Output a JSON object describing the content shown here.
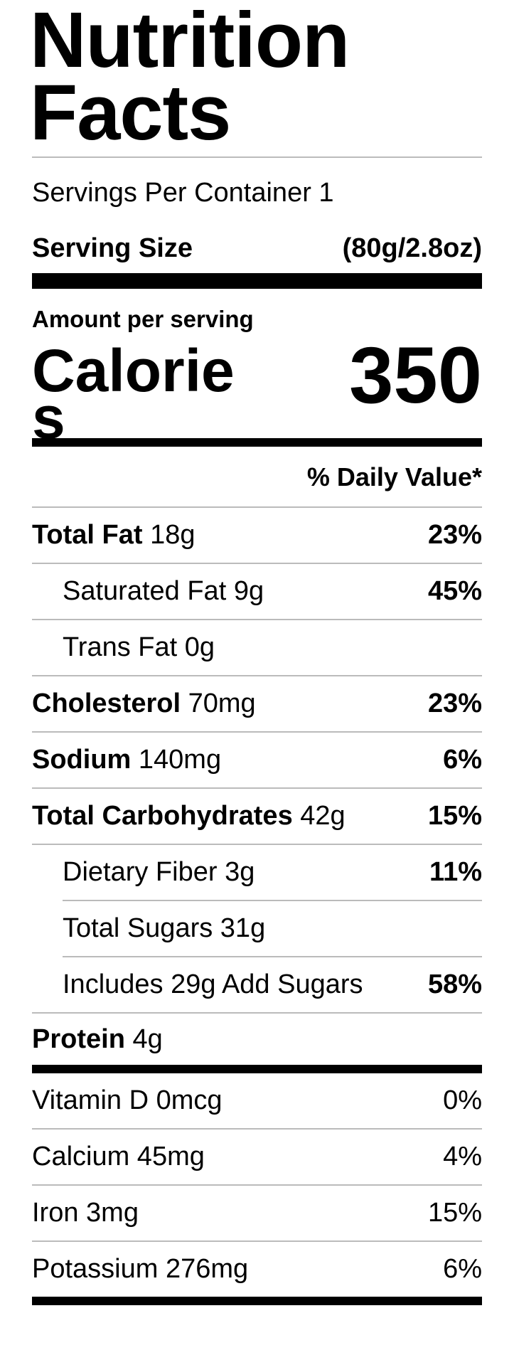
{
  "title": "Nutrition Facts",
  "servings": "Servings Per Container 1",
  "serving_size": {
    "label": "Serving Size",
    "value": "(80g/2.8oz)"
  },
  "amount_per_serving": "Amount per serving",
  "calories": {
    "label": "Calories",
    "value": "350"
  },
  "daily_value_header": "% Daily Value*",
  "nutrients": [
    {
      "name": "Total Fat",
      "amount": "18g",
      "percent": "23%"
    },
    {
      "name": "Saturated Fat",
      "amount": "9g",
      "percent": "45%"
    },
    {
      "name": "Trans Fat",
      "amount": "0g"
    },
    {
      "name": "Cholesterol",
      "amount": "70mg",
      "percent": "23%"
    },
    {
      "name": "Sodium",
      "amount": "140mg",
      "percent": "6%"
    },
    {
      "name": "Total Carbohydrates",
      "amount": "42g",
      "percent": "15%"
    },
    {
      "name": "Dietary Fiber",
      "amount": "3g",
      "percent": "11%"
    },
    {
      "name": "Total Sugars",
      "amount": "31g"
    },
    {
      "name": "Includes 29g Add Sugars",
      "percent": "58%"
    },
    {
      "name": "Protein",
      "amount": "4g"
    }
  ],
  "vitamins": [
    {
      "name": "Vitamin D 0mcg",
      "percent": "0%"
    },
    {
      "name": "Calcium 45mg",
      "percent": "4%"
    },
    {
      "name": "Iron 3mg",
      "percent": "15%"
    },
    {
      "name": "Potassium 276mg",
      "percent": "6%"
    }
  ]
}
